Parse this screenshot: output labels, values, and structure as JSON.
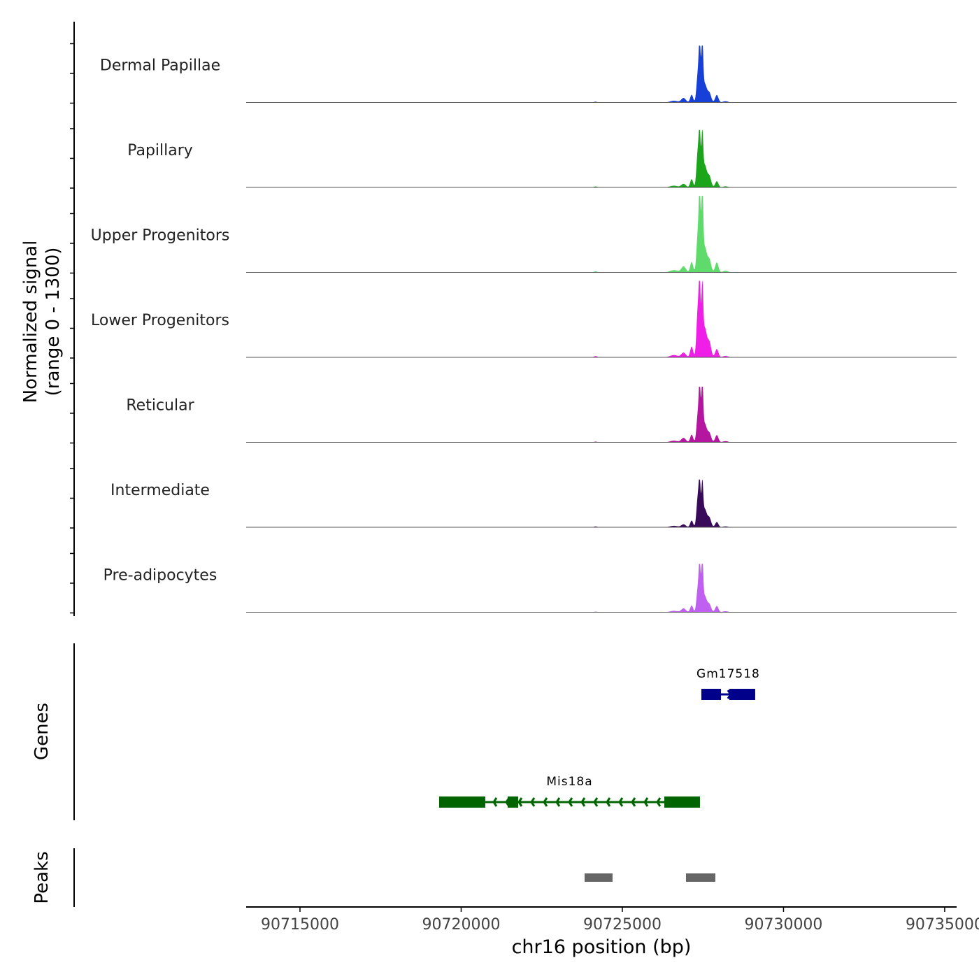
{
  "chart_data": {
    "type": "area",
    "title": "",
    "xlabel": "chr16 position (bp)",
    "ylabel_line1": "Normalized signal",
    "ylabel_line2": "(range 0 - 1300)",
    "ylim": [
      0,
      1300
    ],
    "xlim": [
      90713330,
      90735370
    ],
    "x_ticks": [
      90715000,
      90720000,
      90725000,
      90730000,
      90735000
    ],
    "x_tick_labels": [
      "90715000",
      "90720000",
      "90725000",
      "90730000",
      "90735000"
    ],
    "peak_profile": [
      {
        "pos": 90726600,
        "rel": 0.03,
        "sd": 120
      },
      {
        "pos": 90726900,
        "rel": 0.07,
        "sd": 70
      },
      {
        "pos": 90727150,
        "rel": 0.14,
        "sd": 45
      },
      {
        "pos": 90727340,
        "rel": 0.55,
        "sd": 40
      },
      {
        "pos": 90727400,
        "rel": 0.95,
        "sd": 28
      },
      {
        "pos": 90727480,
        "rel": 0.95,
        "sd": 28
      },
      {
        "pos": 90727560,
        "rel": 0.35,
        "sd": 60
      },
      {
        "pos": 90727700,
        "rel": 0.18,
        "sd": 55
      },
      {
        "pos": 90727930,
        "rel": 0.12,
        "sd": 50
      },
      {
        "pos": 90728200,
        "rel": 0.02,
        "sd": 80
      },
      {
        "pos": 90724170,
        "rel": 0.015,
        "sd": 50
      }
    ],
    "series": [
      {
        "name": "Dermal Papillae",
        "color": "#1740D8",
        "max": 870
      },
      {
        "name": "Papillary",
        "color": "#1AA51A",
        "max": 880
      },
      {
        "name": "Upper Progenitors",
        "color": "#5EDB6A",
        "max": 1170
      },
      {
        "name": "Lower Progenitors",
        "color": "#F01FE8",
        "max": 1170
      },
      {
        "name": "Reticular",
        "color": "#B5169F",
        "max": 850
      },
      {
        "name": "Intermediate",
        "color": "#3A0A5A",
        "max": 730
      },
      {
        "name": "Pre-adipocytes",
        "color": "#C060F0",
        "max": 740
      }
    ],
    "genes_label": "Genes",
    "genes": [
      {
        "name": "Gm17518",
        "strand": "+",
        "color": "#00008B",
        "start": 90727451,
        "end": 90729121,
        "exons": [
          [
            90727451,
            90728059
          ],
          [
            90728319,
            90729121
          ]
        ],
        "row": 0
      },
      {
        "name": "Mis18a",
        "strand": "-",
        "color": "#006400",
        "start": 90719317,
        "end": 90727408,
        "exons": [
          [
            90719317,
            90720748
          ],
          [
            90721443,
            90721768
          ],
          [
            90726302,
            90727408
          ]
        ],
        "row": 1
      }
    ],
    "peaks_label": "Peaks",
    "peaks_color": "#666666",
    "peaks": [
      [
        90723829,
        90724696
      ],
      [
        90726974,
        90727885
      ]
    ]
  }
}
